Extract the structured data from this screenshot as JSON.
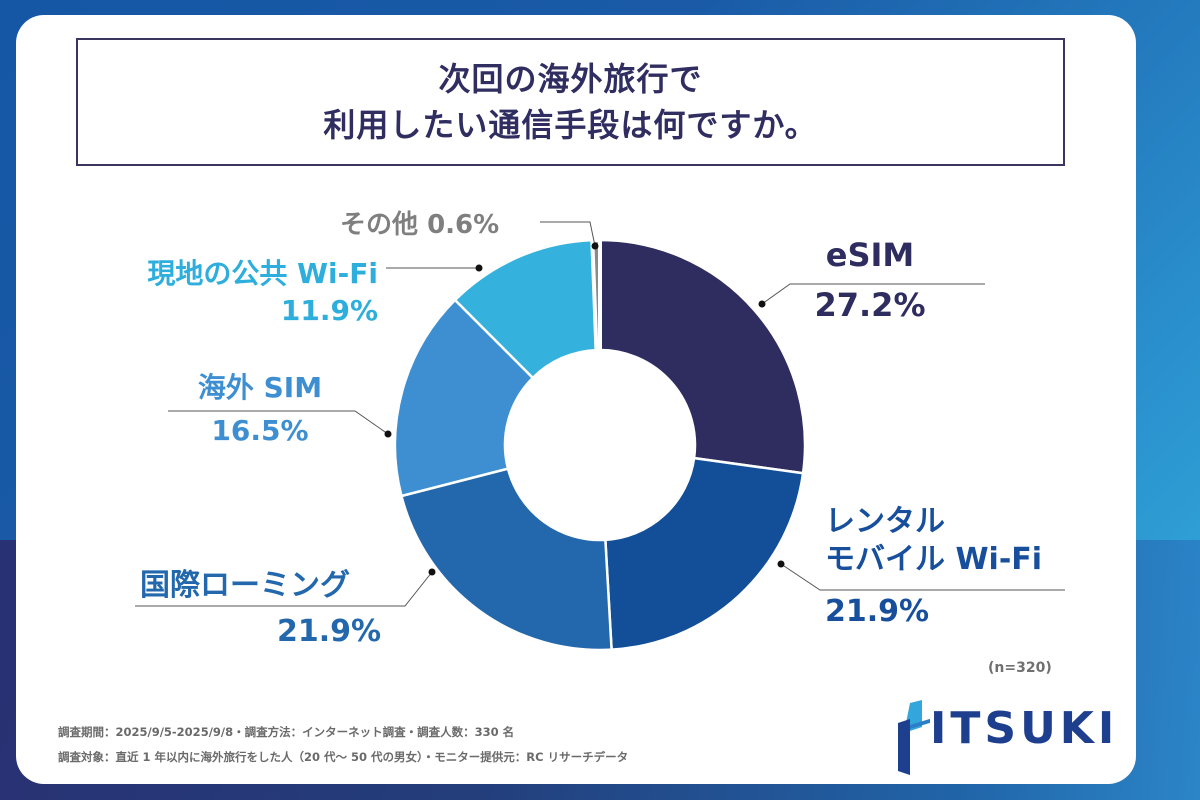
{
  "title": {
    "line1": "次回の海外旅行で",
    "line2": "利用したい通信手段は何ですか。"
  },
  "chart_data": {
    "type": "pie",
    "variant": "donut",
    "title": "次回の海外旅行で利用したい通信手段は何ですか。",
    "sample_size": "(n=320)",
    "slices": [
      {
        "id": "esim",
        "label": "eSIM",
        "label_lines": [
          "eSIM"
        ],
        "value": 27.2,
        "value_label": "27.2%",
        "color": "#2f2d60",
        "label_color": "#2f2d60"
      },
      {
        "id": "rental-wifi",
        "label": "レンタル モバイル Wi-Fi",
        "label_lines": [
          "レンタル",
          "モバイル Wi-Fi"
        ],
        "value": 21.9,
        "value_label": "21.9%",
        "color": "#124f98",
        "label_color": "#174f9c"
      },
      {
        "id": "roaming",
        "label": "国際ローミング",
        "label_lines": [
          "国際ローミング"
        ],
        "value": 21.9,
        "value_label": "21.9%",
        "color": "#2368ad",
        "label_color": "#2368ad"
      },
      {
        "id": "overseas-sim",
        "label": "海外 SIM",
        "label_lines": [
          "海外 SIM"
        ],
        "value": 16.5,
        "value_label": "16.5%",
        "color": "#3d8fd1",
        "label_color": "#3d8fd1"
      },
      {
        "id": "public-wifi",
        "label": "現地の公共 Wi-Fi",
        "label_lines": [
          "現地の公共 Wi-Fi"
        ],
        "value": 11.9,
        "value_label": "11.9%",
        "color": "#34b1dd",
        "label_color": "#2eaedc"
      },
      {
        "id": "other",
        "label": "その他",
        "label_lines": [
          "その他"
        ],
        "value": 0.6,
        "value_label": "0.6%",
        "color": "#8a8a8a",
        "label_color": "#7f7f7f"
      }
    ]
  },
  "footer": {
    "line1": "調査期間：2025/9/5-2025/9/8・調査方法：インターネット調査・調査人数：330 名",
    "line2": "調査対象：直近 1 年以内に海外旅行をした人（20 代～ 50 代の男女）・モニター提供元：RC リサーチデータ"
  },
  "logo": {
    "text": "ITSUKI"
  }
}
